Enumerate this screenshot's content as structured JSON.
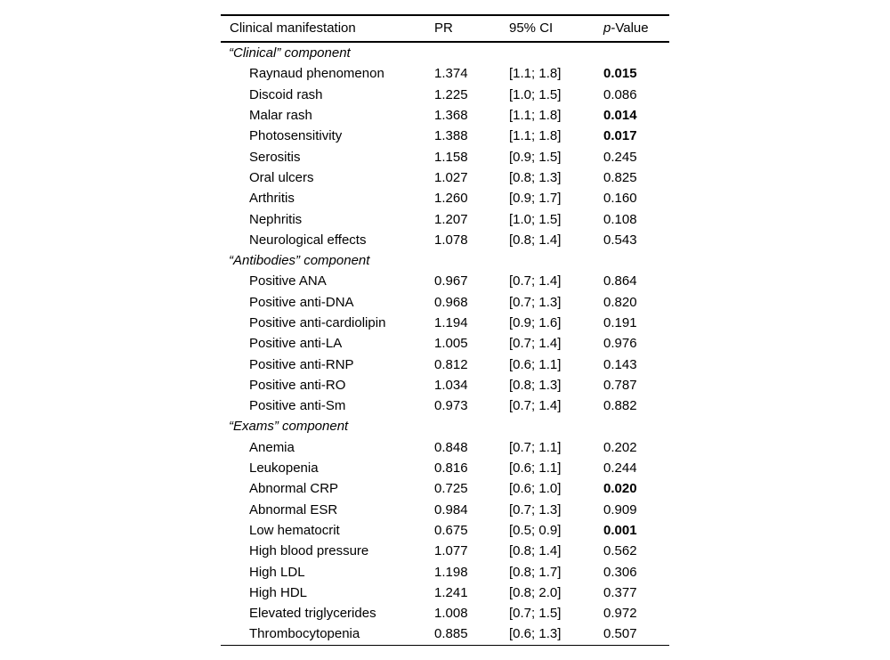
{
  "page": {
    "background": "#ffffff",
    "text_color": "#000000"
  },
  "table": {
    "columns": {
      "col1": "Clinical manifestation",
      "col2": "PR",
      "col3": "95% CI",
      "col4_italic": "p",
      "col4_rest": "-Value"
    },
    "sections": [
      {
        "label": "“Clinical” component",
        "rows": [
          {
            "name": "Raynaud phenomenon",
            "pr": "1.374",
            "ci": "[1.1; 1.8]",
            "p": "0.015",
            "bold": true
          },
          {
            "name": "Discoid rash",
            "pr": "1.225",
            "ci": "[1.0; 1.5]",
            "p": "0.086",
            "bold": false
          },
          {
            "name": "Malar rash",
            "pr": "1.368",
            "ci": "[1.1; 1.8]",
            "p": "0.014",
            "bold": true
          },
          {
            "name": "Photosensitivity",
            "pr": "1.388",
            "ci": "[1.1; 1.8]",
            "p": "0.017",
            "bold": true
          },
          {
            "name": "Serositis",
            "pr": "1.158",
            "ci": "[0.9; 1.5]",
            "p": "0.245",
            "bold": false
          },
          {
            "name": "Oral ulcers",
            "pr": "1.027",
            "ci": "[0.8; 1.3]",
            "p": "0.825",
            "bold": false
          },
          {
            "name": "Arthritis",
            "pr": "1.260",
            "ci": "[0.9; 1.7]",
            "p": "0.160",
            "bold": false
          },
          {
            "name": "Nephritis",
            "pr": "1.207",
            "ci": "[1.0; 1.5]",
            "p": "0.108",
            "bold": false
          },
          {
            "name": "Neurological effects",
            "pr": "1.078",
            "ci": "[0.8; 1.4]",
            "p": "0.543",
            "bold": false
          }
        ]
      },
      {
        "label": "“Antibodies” component",
        "rows": [
          {
            "name": "Positive ANA",
            "pr": "0.967",
            "ci": "[0.7; 1.4]",
            "p": "0.864",
            "bold": false
          },
          {
            "name": "Positive anti-DNA",
            "pr": "0.968",
            "ci": "[0.7; 1.3]",
            "p": "0.820",
            "bold": false
          },
          {
            "name": "Positive anti-cardiolipin",
            "pr": "1.194",
            "ci": "[0.9; 1.6]",
            "p": "0.191",
            "bold": false
          },
          {
            "name": "Positive anti-LA",
            "pr": "1.005",
            "ci": "[0.7; 1.4]",
            "p": "0.976",
            "bold": false
          },
          {
            "name": "Positive anti-RNP",
            "pr": "0.812",
            "ci": "[0.6; 1.1]",
            "p": "0.143",
            "bold": false
          },
          {
            "name": "Positive anti-RO",
            "pr": "1.034",
            "ci": "[0.8; 1.3]",
            "p": "0.787",
            "bold": false
          },
          {
            "name": "Positive anti-Sm",
            "pr": "0.973",
            "ci": "[0.7; 1.4]",
            "p": "0.882",
            "bold": false
          }
        ]
      },
      {
        "label": "“Exams” component",
        "rows": [
          {
            "name": "Anemia",
            "pr": "0.848",
            "ci": "[0.7; 1.1]",
            "p": "0.202",
            "bold": false
          },
          {
            "name": "Leukopenia",
            "pr": "0.816",
            "ci": "[0.6; 1.1]",
            "p": "0.244",
            "bold": false
          },
          {
            "name": "Abnormal CRP",
            "pr": "0.725",
            "ci": "[0.6; 1.0]",
            "p": "0.020",
            "bold": true
          },
          {
            "name": "Abnormal ESR",
            "pr": "0.984",
            "ci": "[0.7; 1.3]",
            "p": "0.909",
            "bold": false
          },
          {
            "name": "Low hematocrit",
            "pr": "0.675",
            "ci": "[0.5; 0.9]",
            "p": "0.001",
            "bold": true
          },
          {
            "name": "High blood pressure",
            "pr": "1.077",
            "ci": "[0.8; 1.4]",
            "p": "0.562",
            "bold": false
          },
          {
            "name": "High LDL",
            "pr": "1.198",
            "ci": "[0.8; 1.7]",
            "p": "0.306",
            "bold": false
          },
          {
            "name": "High HDL",
            "pr": "1.241",
            "ci": "[0.8; 2.0]",
            "p": "0.377",
            "bold": false
          },
          {
            "name": "Elevated triglycerides",
            "pr": "1.008",
            "ci": "[0.7; 1.5]",
            "p": "0.972",
            "bold": false
          },
          {
            "name": "Thrombocytopenia",
            "pr": "0.885",
            "ci": "[0.6; 1.3]",
            "p": "0.507",
            "bold": false
          }
        ]
      }
    ]
  }
}
